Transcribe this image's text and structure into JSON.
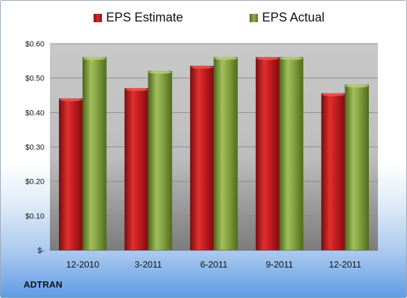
{
  "company_label": "ADTRAN",
  "legend": {
    "estimate": "EPS Estimate",
    "actual": "EPS Actual"
  },
  "colors": {
    "estimate": "#c81e22",
    "actual": "#7f9c3c",
    "plot_bg_top": "#c4c4c4",
    "plot_bg_bottom": "#7a7a7a"
  },
  "chart_data": {
    "type": "bar",
    "categories": [
      "12-2010",
      "3-2011",
      "6-2011",
      "9-2011",
      "12-2011"
    ],
    "series": [
      {
        "name": "EPS Estimate",
        "values": [
          0.44,
          0.47,
          0.535,
          0.56,
          0.455
        ]
      },
      {
        "name": "EPS Actual",
        "values": [
          0.56,
          0.52,
          0.56,
          0.56,
          0.48
        ]
      }
    ],
    "yticks": [
      "$0.60",
      "$0.50",
      "$0.40",
      "$0.30",
      "$0.20",
      "$0.10",
      "$-"
    ],
    "ylim": [
      0,
      0.6
    ],
    "grid": true,
    "legend_position": "top"
  }
}
